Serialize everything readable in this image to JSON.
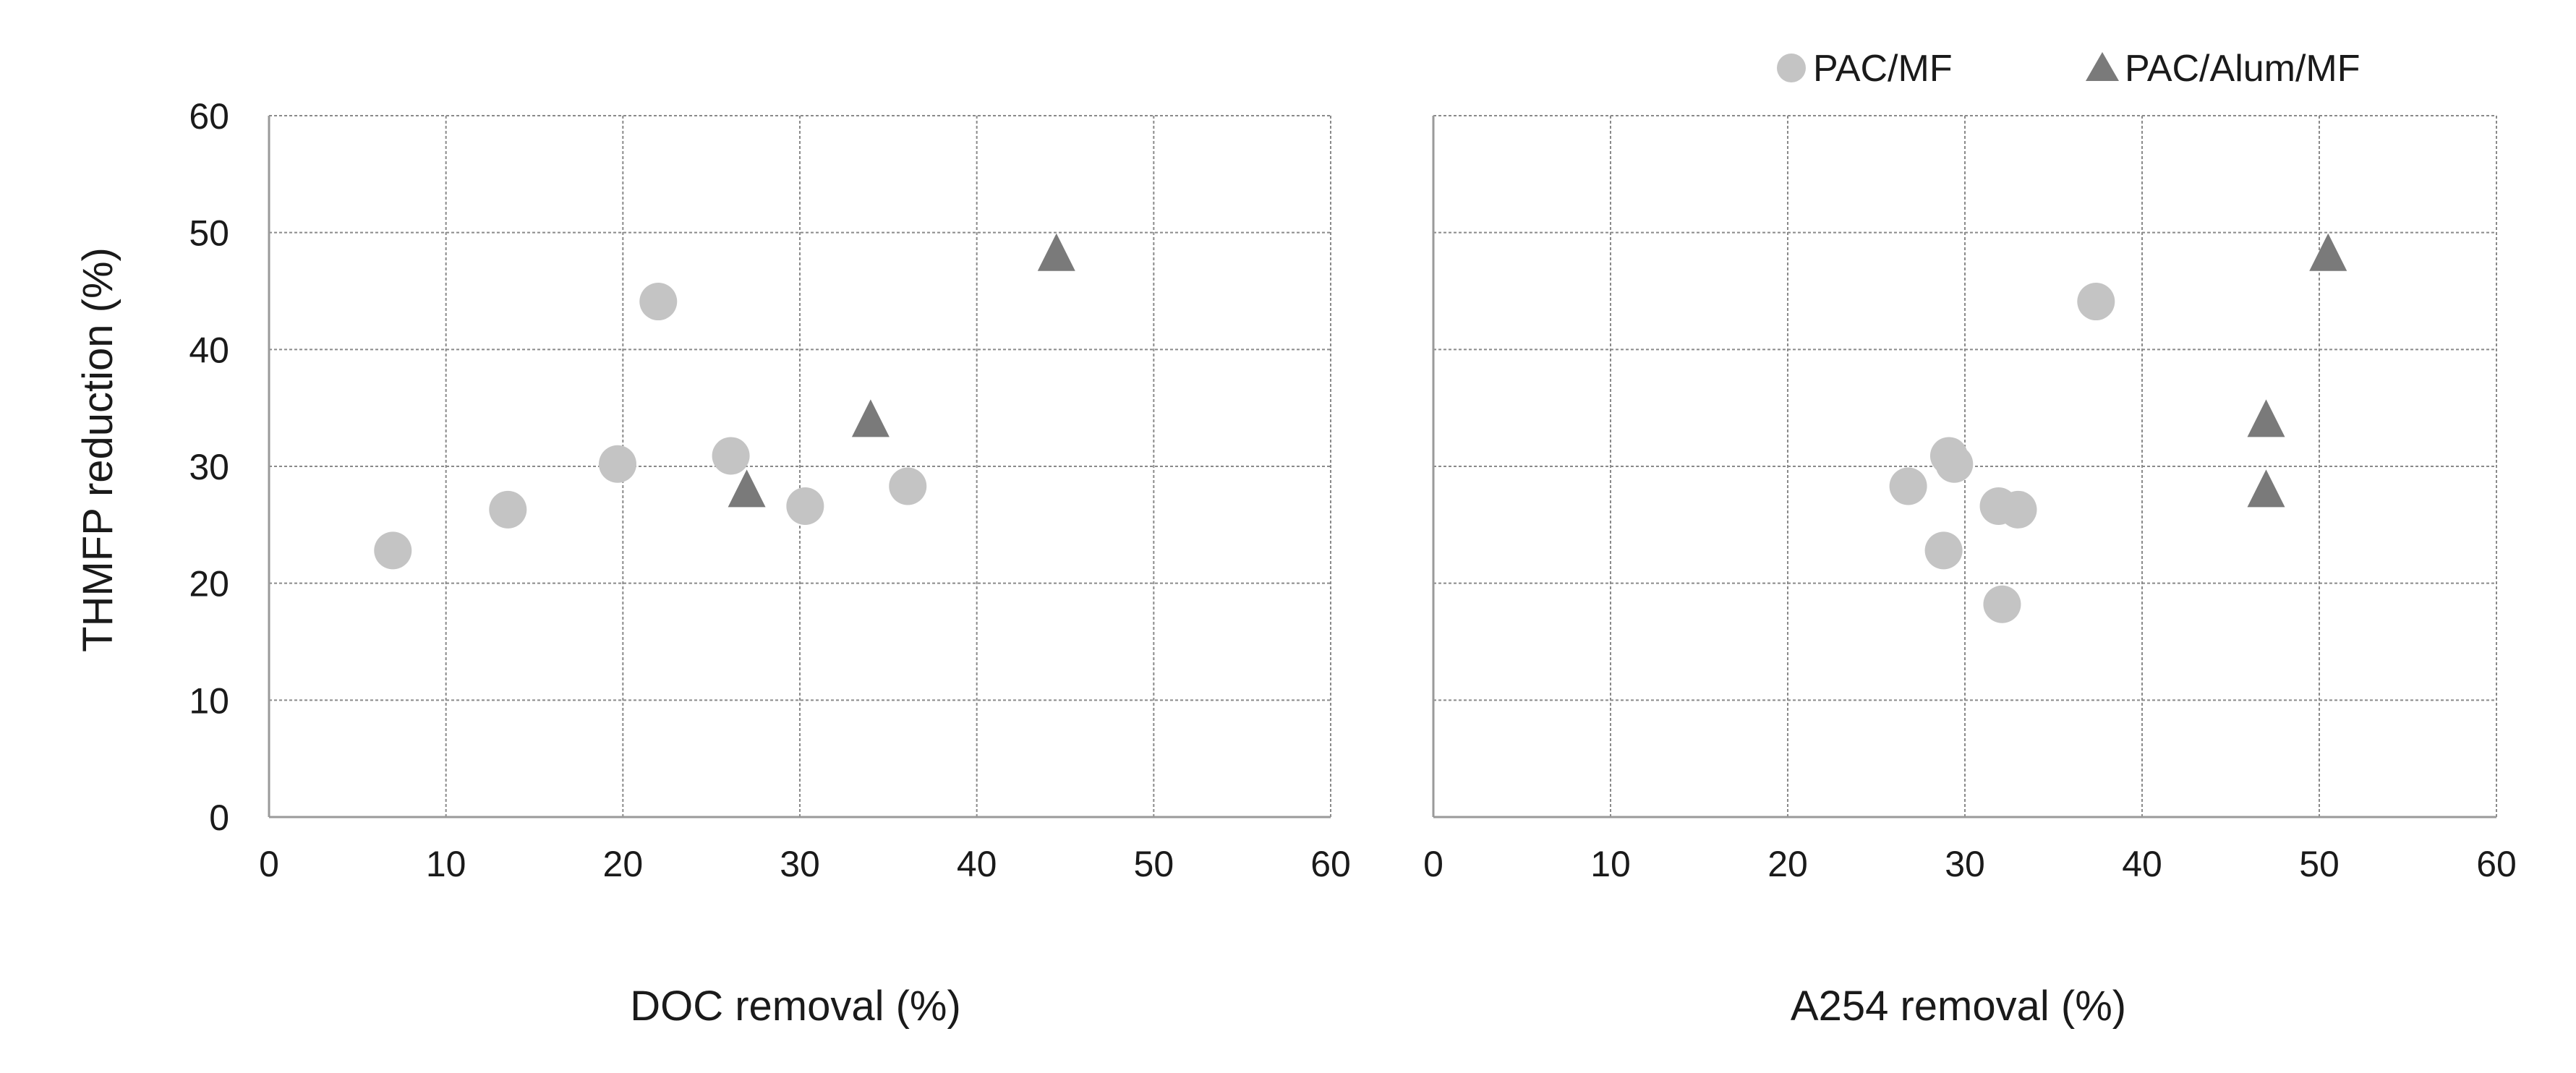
{
  "colors": {
    "PAC/MF": "#c4c4c4",
    "PAC/Alum/MF": "#7a7a7a",
    "grid": "#8a8a8a",
    "axis": "#9a9a9a"
  },
  "chart_data": [
    {
      "type": "scatter",
      "title": "",
      "xlabel": "DOC removal (%)",
      "ylabel": "THMFP reduction (%)",
      "xlim": [
        0,
        60
      ],
      "ylim": [
        0,
        60
      ],
      "xticks": [
        "0",
        "10",
        "20",
        "30",
        "40",
        "50",
        "60"
      ],
      "yticks": [
        "0",
        "10",
        "20",
        "30",
        "40",
        "50",
        "60"
      ],
      "grid": true,
      "series": [
        {
          "name": "PAC/MF",
          "marker": "circle",
          "x": [
            7,
            13.5,
            19.7,
            22,
            26.1,
            30.3,
            36.1
          ],
          "y": [
            22.8,
            26.3,
            30.2,
            44.1,
            30.9,
            26.6,
            28.3
          ]
        },
        {
          "name": "PAC/Alum/MF",
          "marker": "triangle",
          "x": [
            27,
            34,
            44.5
          ],
          "y": [
            28,
            34,
            48.2
          ]
        }
      ]
    },
    {
      "type": "scatter",
      "title": "",
      "xlabel": "A254 removal (%)",
      "ylabel": "",
      "xlim": [
        0,
        60
      ],
      "ylim": [
        0,
        60
      ],
      "xticks": [
        "0",
        "10",
        "20",
        "30",
        "40",
        "50",
        "60"
      ],
      "yticks": [],
      "grid": true,
      "series": [
        {
          "name": "PAC/MF",
          "marker": "circle",
          "x": [
            26.8,
            28.8,
            29.1,
            29.4,
            31.9,
            32.1,
            33,
            37.4
          ],
          "y": [
            28.3,
            22.8,
            30.9,
            30.2,
            26.6,
            18.2,
            26.3,
            44.1
          ]
        },
        {
          "name": "PAC/Alum/MF",
          "marker": "triangle",
          "x": [
            47,
            47,
            50.5
          ],
          "y": [
            28,
            34,
            48.2
          ]
        }
      ]
    }
  ],
  "legend": {
    "position": "top-right",
    "items": [
      {
        "label": "PAC/MF",
        "marker": "circle"
      },
      {
        "label": "PAC/Alum/MF",
        "marker": "triangle"
      }
    ]
  }
}
